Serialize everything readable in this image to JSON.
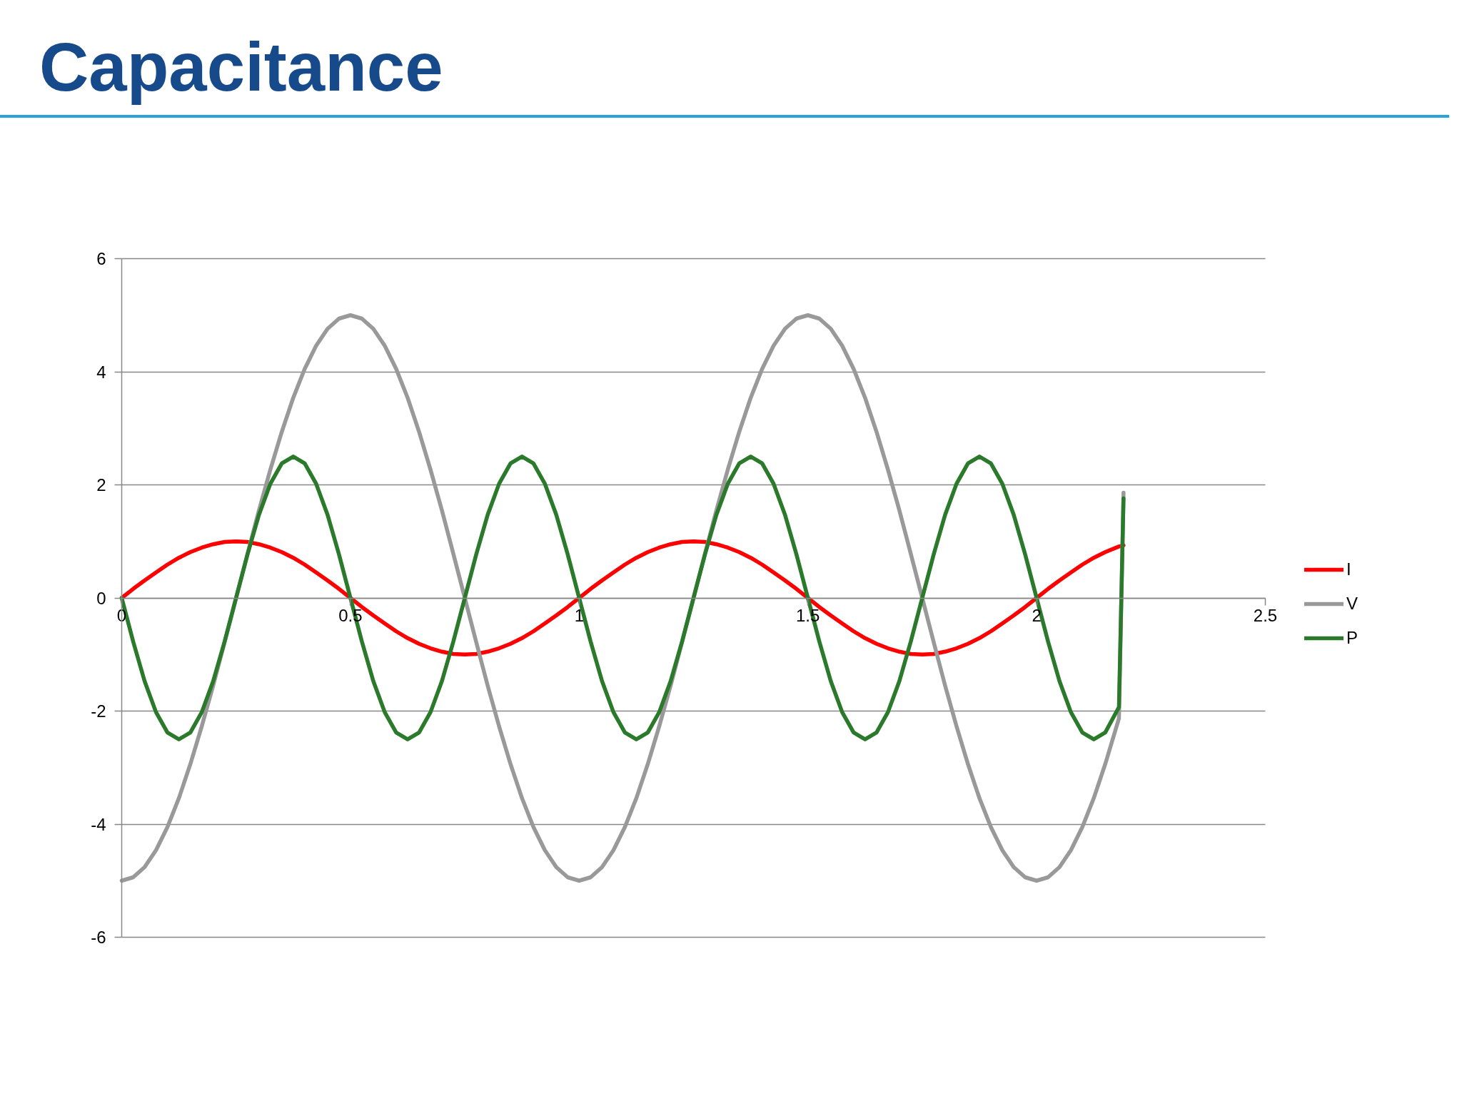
{
  "chart_data": {
    "type": "line",
    "title": "Capacitance",
    "x": [
      0,
      0.025,
      0.05,
      0.075,
      0.1,
      0.125,
      0.15,
      0.175,
      0.2,
      0.225,
      0.25,
      0.275,
      0.3,
      0.325,
      0.35,
      0.375,
      0.4,
      0.425,
      0.45,
      0.475,
      0.5,
      0.525,
      0.55,
      0.575,
      0.6,
      0.625,
      0.65,
      0.675,
      0.7,
      0.725,
      0.75,
      0.775,
      0.8,
      0.825,
      0.85,
      0.875,
      0.9,
      0.925,
      0.95,
      0.975,
      1,
      1.025,
      1.05,
      1.075,
      1.1,
      1.125,
      1.15,
      1.175,
      1.2,
      1.225,
      1.25,
      1.275,
      1.3,
      1.325,
      1.35,
      1.375,
      1.4,
      1.425,
      1.45,
      1.475,
      1.5,
      1.525,
      1.55,
      1.575,
      1.6,
      1.625,
      1.65,
      1.675,
      1.7,
      1.725,
      1.75,
      1.775,
      1.8,
      1.825,
      1.85,
      1.875,
      1.9,
      1.925,
      1.95,
      1.975,
      2,
      2.025,
      2.05,
      2.075,
      2.1,
      2.125,
      2.15,
      2.18,
      2.19
    ],
    "xlim": [
      0,
      2.5
    ],
    "xticks": [
      0,
      0.5,
      1,
      1.5,
      2,
      2.5
    ],
    "ylim": [
      -6,
      6
    ],
    "yticks": [
      -6,
      -4,
      -2,
      0,
      2,
      4,
      6
    ],
    "grid": "y",
    "legend": "right",
    "series": [
      {
        "name": "I",
        "color": "#ff0000",
        "values": [
          0,
          0.16,
          0.31,
          0.45,
          0.59,
          0.71,
          0.81,
          0.89,
          0.95,
          0.99,
          1,
          0.99,
          0.95,
          0.89,
          0.81,
          0.71,
          0.59,
          0.45,
          0.31,
          0.16,
          0,
          -0.16,
          -0.31,
          -0.45,
          -0.59,
          -0.71,
          -0.81,
          -0.89,
          -0.95,
          -0.99,
          -1,
          -0.99,
          -0.95,
          -0.89,
          -0.81,
          -0.71,
          -0.59,
          -0.45,
          -0.31,
          -0.16,
          0,
          0.16,
          0.31,
          0.45,
          0.59,
          0.71,
          0.81,
          0.89,
          0.95,
          0.99,
          1,
          0.99,
          0.95,
          0.89,
          0.81,
          0.71,
          0.59,
          0.45,
          0.31,
          0.16,
          0,
          -0.16,
          -0.31,
          -0.45,
          -0.59,
          -0.71,
          -0.81,
          -0.89,
          -0.95,
          -0.99,
          -1,
          -0.99,
          -0.95,
          -0.89,
          -0.81,
          -0.71,
          -0.59,
          -0.45,
          -0.31,
          -0.16,
          0,
          0.16,
          0.31,
          0.45,
          0.59,
          0.71,
          0.81,
          0.91,
          0.93
        ]
      },
      {
        "name": "V",
        "color": "#999999",
        "values": [
          -5,
          -4.94,
          -4.76,
          -4.46,
          -4.05,
          -3.54,
          -2.94,
          -2.27,
          -1.55,
          -0.78,
          0,
          0.78,
          1.55,
          2.27,
          2.94,
          3.54,
          4.05,
          4.46,
          4.76,
          4.94,
          5,
          4.94,
          4.76,
          4.46,
          4.05,
          3.54,
          2.94,
          2.27,
          1.55,
          0.78,
          0,
          -0.78,
          -1.55,
          -2.27,
          -2.94,
          -3.54,
          -4.05,
          -4.46,
          -4.76,
          -4.94,
          -5,
          -4.94,
          -4.76,
          -4.46,
          -4.05,
          -3.54,
          -2.94,
          -2.27,
          -1.55,
          -0.78,
          0,
          0.78,
          1.55,
          2.27,
          2.94,
          3.54,
          4.05,
          4.46,
          4.76,
          4.94,
          5,
          4.94,
          4.76,
          4.46,
          4.05,
          3.54,
          2.94,
          2.27,
          1.55,
          0.78,
          0,
          -0.78,
          -1.55,
          -2.27,
          -2.94,
          -3.54,
          -4.05,
          -4.46,
          -4.76,
          -4.94,
          -5,
          -4.94,
          -4.76,
          -4.46,
          -4.05,
          -3.54,
          -2.94,
          -2.13,
          1.86
        ]
      },
      {
        "name": "P",
        "color": "#2b7a2b",
        "values": [
          0,
          -0.77,
          -1.47,
          -2.02,
          -2.38,
          -2.5,
          -2.38,
          -2.02,
          -1.47,
          -0.77,
          0,
          0.77,
          1.47,
          2.02,
          2.38,
          2.5,
          2.38,
          2.02,
          1.47,
          0.77,
          0,
          -0.77,
          -1.47,
          -2.02,
          -2.38,
          -2.5,
          -2.38,
          -2.02,
          -1.47,
          -0.77,
          0,
          0.77,
          1.47,
          2.02,
          2.38,
          2.5,
          2.38,
          2.02,
          1.47,
          0.77,
          0,
          -0.77,
          -1.47,
          -2.02,
          -2.38,
          -2.5,
          -2.38,
          -2.02,
          -1.47,
          -0.77,
          0,
          0.77,
          1.47,
          2.02,
          2.38,
          2.5,
          2.38,
          2.02,
          1.47,
          0.77,
          0,
          -0.77,
          -1.47,
          -2.02,
          -2.38,
          -2.5,
          -2.38,
          -2.02,
          -1.47,
          -0.77,
          0,
          0.77,
          1.47,
          2.02,
          2.38,
          2.5,
          2.38,
          2.02,
          1.47,
          0.77,
          0,
          -0.77,
          -1.47,
          -2.02,
          -2.38,
          -2.5,
          -2.38,
          -1.93,
          1.76
        ]
      }
    ]
  }
}
